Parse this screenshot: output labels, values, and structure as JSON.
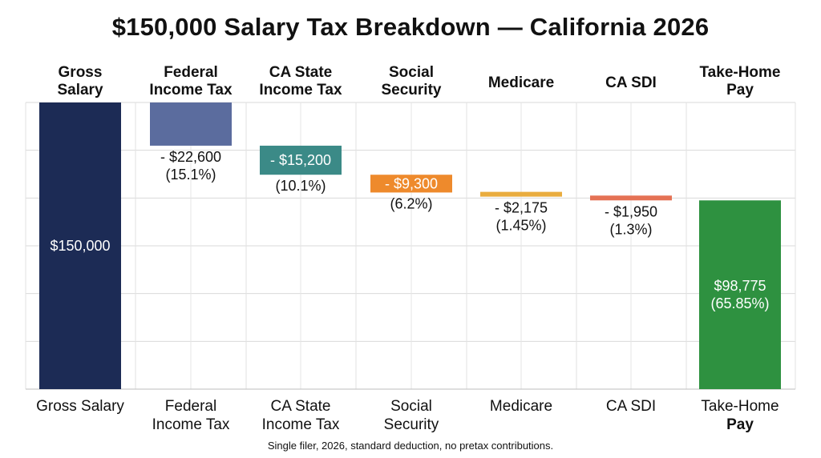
{
  "title": "$150,000 Salary Tax Breakdown — California 2026",
  "footnote": "Single filer, 2026, standard deduction, no pretax contributions.",
  "chart_data": {
    "type": "waterfall",
    "title": "$150,000 Salary Tax Breakdown — California 2026",
    "ylim": [
      0,
      150000
    ],
    "grid": true,
    "steps": [
      {
        "key": "gross",
        "kind": "total",
        "top_label": [
          "Gross",
          "Salary"
        ],
        "bottom_label": [
          "Gross Salary"
        ],
        "bottom_bold": [
          false
        ],
        "value": 150000,
        "labels": [
          "$150,000"
        ],
        "label_pos": "inside",
        "color": "#1c2b55"
      },
      {
        "key": "federal",
        "kind": "decrease",
        "top_label": [
          "Federal",
          "Income Tax"
        ],
        "bottom_label": [
          "Federal",
          "Income Tax"
        ],
        "bottom_bold": [
          false,
          false
        ],
        "value": 22600,
        "labels": [
          "- $22,600",
          "(15.1%)"
        ],
        "label_pos": "below",
        "color": "#5b6c9e"
      },
      {
        "key": "state",
        "kind": "decrease",
        "top_label": [
          "CA State",
          "Income Tax"
        ],
        "bottom_label": [
          "CA State",
          "Income Tax"
        ],
        "bottom_bold": [
          false,
          false
        ],
        "value": 15200,
        "labels": [
          "- $15,200",
          "(10.1%)"
        ],
        "label_pos": "split",
        "color": "#3b8a87"
      },
      {
        "key": "ss",
        "kind": "decrease",
        "top_label": [
          "Social",
          "Security"
        ],
        "bottom_label": [
          "Social",
          "Security"
        ],
        "bottom_bold": [
          false,
          false
        ],
        "value": 9300,
        "labels": [
          "- $9,300",
          "(6.2%)"
        ],
        "label_pos": "split",
        "color": "#ee8a2c"
      },
      {
        "key": "medicare",
        "kind": "decrease",
        "top_label": [
          "Medicare"
        ],
        "bottom_label": [
          "Medicare"
        ],
        "bottom_bold": [
          false
        ],
        "value": 2175,
        "labels": [
          "- $2,175",
          "(1.45%)"
        ],
        "label_pos": "below",
        "color": "#e9ac3e"
      },
      {
        "key": "sdi",
        "kind": "decrease",
        "top_label": [
          "CA SDI"
        ],
        "bottom_label": [
          "CA SDI"
        ],
        "bottom_bold": [
          false
        ],
        "value": 1950,
        "labels": [
          "- $1,950",
          "(1.3%)"
        ],
        "label_pos": "below",
        "color": "#e57255"
      },
      {
        "key": "takehome",
        "kind": "total",
        "top_label": [
          "Take-Home",
          "Pay"
        ],
        "bottom_label": [
          "Take-Home",
          "Pay"
        ],
        "bottom_bold": [
          false,
          true
        ],
        "value": 98775,
        "labels": [
          "$98,775",
          "(65.85%)"
        ],
        "label_pos": "inside",
        "color": "#2e9140"
      }
    ]
  }
}
